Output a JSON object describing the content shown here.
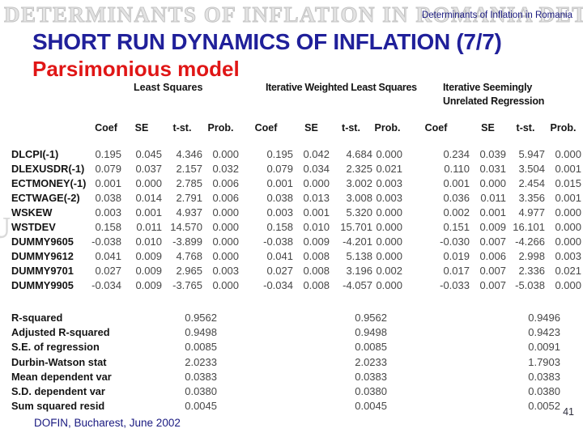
{
  "slide": {
    "watermark": "DETERMINANTS OF INFLATION IN ROMANIA DETERMINANTS",
    "watermark_fragment": "U",
    "header_right": "Determinants of Inflation in Romania",
    "title": "SHORT RUN DYNAMICS OF INFLATION (7/7)",
    "subtitle": "Parsimonious model",
    "footer": "DOFIN, Bucharest, June 2002",
    "page_number": "41"
  },
  "colors": {
    "title_navy": "#20209a",
    "subtitle_red": "#e01616",
    "header_footer_navy": "#1a1a80",
    "table_text": "#141414",
    "number_gray": "#474747",
    "watermark_gray": "#d9d9d9"
  },
  "table": {
    "group_headers": [
      "Least Squares",
      "Iterative Weighted Least Squares",
      "Iterative Seemingly Unrelated Regression"
    ],
    "col_headers": [
      "Coef",
      "SE",
      "t-st.",
      "Prob."
    ],
    "rows": [
      {
        "label": "DLCPI(-1)",
        "values": [
          "0.195",
          "0.045",
          "4.346",
          "0.000",
          "0.195",
          "0.042",
          "4.684",
          "0.000",
          "0.234",
          "0.039",
          "5.947",
          "0.000"
        ]
      },
      {
        "label": "DLEXUSDR(-1)",
        "values": [
          "0.079",
          "0.037",
          "2.157",
          "0.032",
          "0.079",
          "0.034",
          "2.325",
          "0.021",
          "0.110",
          "0.031",
          "3.504",
          "0.001"
        ]
      },
      {
        "label": "ECTMONEY(-1)",
        "values": [
          "0.001",
          "0.000",
          "2.785",
          "0.006",
          "0.001",
          "0.000",
          "3.002",
          "0.003",
          "0.001",
          "0.000",
          "2.454",
          "0.015"
        ]
      },
      {
        "label": "ECTWAGE(-2)",
        "values": [
          "0.038",
          "0.014",
          "2.791",
          "0.006",
          "0.038",
          "0.013",
          "3.008",
          "0.003",
          "0.036",
          "0.011",
          "3.356",
          "0.001"
        ]
      },
      {
        "label": "WSKEW",
        "values": [
          "0.003",
          "0.001",
          "4.937",
          "0.000",
          "0.003",
          "0.001",
          "5.320",
          "0.000",
          "0.002",
          "0.001",
          "4.977",
          "0.000"
        ]
      },
      {
        "label": "WSTDEV",
        "values": [
          "0.158",
          "0.011",
          "14.570",
          "0.000",
          "0.158",
          "0.010",
          "15.701",
          "0.000",
          "0.151",
          "0.009",
          "16.101",
          "0.000"
        ]
      },
      {
        "label": "DUMMY9605",
        "values": [
          "-0.038",
          "0.010",
          "-3.899",
          "0.000",
          "-0.038",
          "0.009",
          "-4.201",
          "0.000",
          "-0.030",
          "0.007",
          "-4.266",
          "0.000"
        ]
      },
      {
        "label": "DUMMY9612",
        "values": [
          "0.041",
          "0.009",
          "4.768",
          "0.000",
          "0.041",
          "0.008",
          "5.138",
          "0.000",
          "0.019",
          "0.006",
          "2.998",
          "0.003"
        ]
      },
      {
        "label": "DUMMY9701",
        "values": [
          "0.027",
          "0.009",
          "2.965",
          "0.003",
          "0.027",
          "0.008",
          "3.196",
          "0.002",
          "0.017",
          "0.007",
          "2.336",
          "0.021"
        ]
      },
      {
        "label": "DUMMY9905",
        "values": [
          "-0.034",
          "0.009",
          "-3.765",
          "0.000",
          "-0.034",
          "0.008",
          "-4.057",
          "0.000",
          "-0.033",
          "0.007",
          "-5.038",
          "0.000"
        ]
      }
    ],
    "stats": [
      {
        "label": "R-squared",
        "values": [
          "0.9562",
          "0.9562",
          "0.9496"
        ]
      },
      {
        "label": "Adjusted R-squared",
        "values": [
          "0.9498",
          "0.9498",
          "0.9423"
        ]
      },
      {
        "label": "S.E. of regression",
        "values": [
          "0.0085",
          "0.0085",
          "0.0091"
        ]
      },
      {
        "label": "Durbin-Watson stat",
        "values": [
          "2.0233",
          "2.0233",
          "1.7903"
        ]
      },
      {
        "label": "Mean dependent var",
        "values": [
          "0.0383",
          "0.0383",
          "0.0383"
        ]
      },
      {
        "label": "S.D. dependent var",
        "values": [
          "0.0380",
          "0.0380",
          "0.0380"
        ]
      },
      {
        "label": "Sum squared resid",
        "values": [
          "0.0045",
          "0.0045",
          "0.0052"
        ]
      }
    ]
  }
}
